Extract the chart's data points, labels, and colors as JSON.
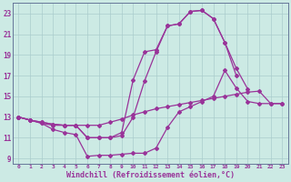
{
  "background_color": "#cceae4",
  "grid_color": "#aacccc",
  "line_color": "#993399",
  "marker": "D",
  "markersize": 2,
  "linewidth": 0.9,
  "xlabel": "Windchill (Refroidissement éolien,°C)",
  "xlabel_fontsize": 6,
  "ytick_labels": [
    "9",
    "11",
    "13",
    "15",
    "17",
    "19",
    "21",
    "23"
  ],
  "ytick_values": [
    9,
    11,
    13,
    15,
    17,
    19,
    21,
    23
  ],
  "xtick_labels": [
    "0",
    "1",
    "2",
    "3",
    "4",
    "5",
    "6",
    "7",
    "8",
    "9",
    "10",
    "11",
    "12",
    "13",
    "14",
    "15",
    "16",
    "17",
    "18",
    "19",
    "20",
    "21",
    "22",
    "23"
  ],
  "xtick_values": [
    0,
    1,
    2,
    3,
    4,
    5,
    6,
    7,
    8,
    9,
    10,
    11,
    12,
    13,
    14,
    15,
    16,
    17,
    18,
    19,
    20,
    21,
    22,
    23
  ],
  "xlim": [
    -0.5,
    23.5
  ],
  "ylim": [
    8.5,
    24.0
  ],
  "lines": [
    {
      "x": [
        0,
        1,
        2,
        3,
        4,
        5,
        6,
        7,
        8,
        9,
        10,
        11,
        12,
        13,
        14,
        15,
        16,
        17,
        18,
        19,
        20,
        21,
        22,
        23
      ],
      "y": [
        13.0,
        12.7,
        12.4,
        12.2,
        12.2,
        12.2,
        12.2,
        12.2,
        12.5,
        12.8,
        13.2,
        13.5,
        13.8,
        14.0,
        14.2,
        14.4,
        14.6,
        14.8,
        15.0,
        15.2,
        15.4,
        15.5,
        14.3,
        14.3
      ]
    },
    {
      "x": [
        0,
        1,
        2,
        3,
        4,
        5,
        6,
        7,
        8,
        9,
        10,
        11,
        12,
        13,
        14,
        15,
        16,
        17,
        18,
        19,
        20,
        21,
        22,
        23
      ],
      "y": [
        13.0,
        12.7,
        12.4,
        11.8,
        11.5,
        11.3,
        9.2,
        9.3,
        9.3,
        9.4,
        9.5,
        9.5,
        10.0,
        12.0,
        13.5,
        14.0,
        14.5,
        15.0,
        17.5,
        15.8,
        14.5,
        14.3,
        14.3,
        14.3
      ]
    },
    {
      "x": [
        0,
        1,
        2,
        3,
        4,
        5,
        6,
        7,
        8,
        9,
        10,
        11,
        12,
        13,
        14,
        15,
        16,
        17,
        18,
        19,
        20,
        21,
        22,
        23
      ],
      "y": [
        13.0,
        12.7,
        12.5,
        12.3,
        12.2,
        12.2,
        11.0,
        11.0,
        11.0,
        11.2,
        13.0,
        16.5,
        19.3,
        21.8,
        22.0,
        23.2,
        23.3,
        22.5,
        20.2,
        17.7,
        15.7,
        null,
        null,
        null
      ]
    },
    {
      "x": [
        0,
        1,
        2,
        3,
        4,
        5,
        6,
        7,
        8,
        9,
        10,
        11,
        12,
        13,
        14,
        15,
        16,
        17,
        18,
        19,
        20,
        21,
        22,
        23
      ],
      "y": [
        13.0,
        12.7,
        12.5,
        12.3,
        12.2,
        12.2,
        11.0,
        11.0,
        11.0,
        11.5,
        16.6,
        19.3,
        19.5,
        21.8,
        22.0,
        23.2,
        23.3,
        22.5,
        20.2,
        17.0,
        null,
        null,
        null,
        null
      ]
    }
  ]
}
